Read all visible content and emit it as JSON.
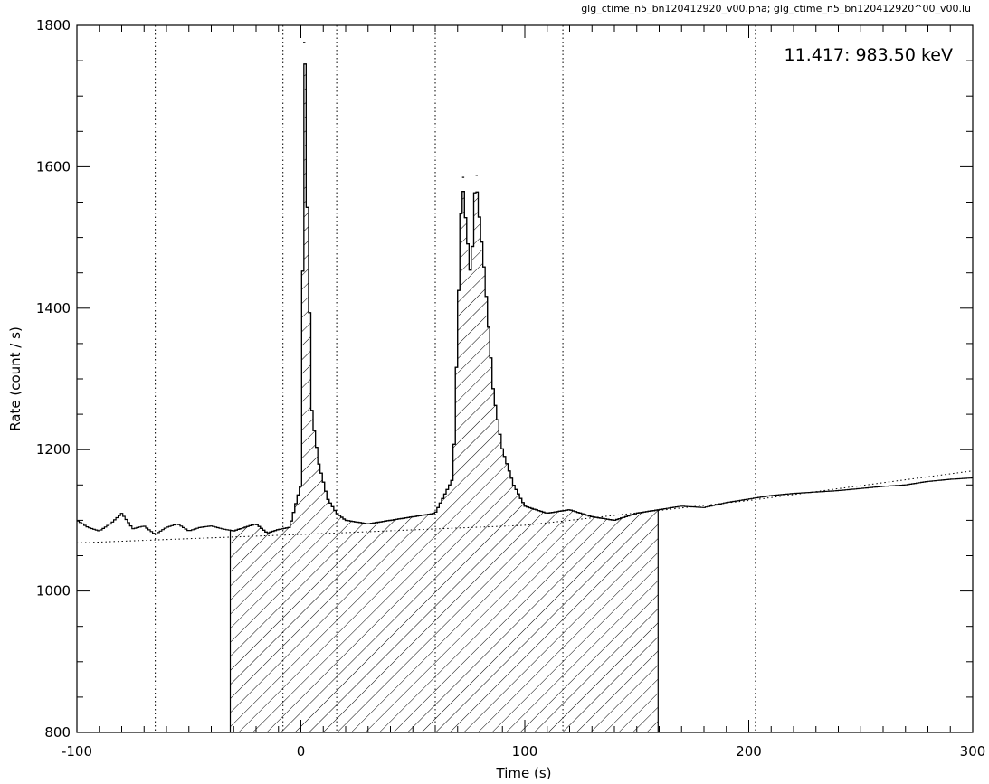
{
  "chart_data": {
    "type": "histogram",
    "title": "glg_ctime_n5_bn120412920_v00.pha; glg_ctime_n5_bn120412920^00_v00.lu",
    "annotation": "11.417: 983.50 keV",
    "xlabel": "Time (s)",
    "ylabel": "Rate (count / s)",
    "xlim": [
      -100,
      300
    ],
    "ylim": [
      800,
      1800
    ],
    "x_ticks": [
      "-100",
      "0",
      "100",
      "200",
      "300"
    ],
    "y_ticks": [
      "800",
      "1000",
      "1200",
      "1400",
      "1600",
      "1800"
    ],
    "grid": false,
    "bin_width_s": 1.024,
    "vertical_dotted_lines_x": [
      -65,
      -8,
      16,
      60,
      117,
      203
    ],
    "background_fit": [
      [
        -100,
        1068
      ],
      [
        0,
        1080
      ],
      [
        100,
        1093
      ],
      [
        200,
        1128
      ],
      [
        300,
        1170
      ]
    ],
    "shaded_interval": [
      -31.5,
      159.5
    ],
    "peaks": [
      {
        "x": 1.5,
        "y": 1776
      },
      {
        "x": 72.5,
        "y": 1585
      },
      {
        "x": 78.5,
        "y": 1588
      }
    ],
    "series": [
      {
        "values": [
          [
            -100,
            1100
          ],
          [
            -95,
            1090
          ],
          [
            -90,
            1085
          ],
          [
            -85,
            1095
          ],
          [
            -80,
            1110
          ],
          [
            -75,
            1088
          ],
          [
            -70,
            1092
          ],
          [
            -65,
            1080
          ],
          [
            -60,
            1090
          ],
          [
            -55,
            1095
          ],
          [
            -50,
            1085
          ],
          [
            -45,
            1090
          ],
          [
            -40,
            1092
          ],
          [
            -35,
            1088
          ],
          [
            -30,
            1085
          ],
          [
            -25,
            1090
          ],
          [
            -20,
            1095
          ],
          [
            -15,
            1082
          ],
          [
            -10,
            1087
          ],
          [
            -5,
            1090
          ],
          [
            0,
            1150
          ],
          [
            1,
            1500
          ],
          [
            2,
            1776
          ],
          [
            3,
            1520
          ],
          [
            5,
            1250
          ],
          [
            8,
            1180
          ],
          [
            12,
            1130
          ],
          [
            16,
            1110
          ],
          [
            20,
            1100
          ],
          [
            30,
            1095
          ],
          [
            40,
            1100
          ],
          [
            50,
            1105
          ],
          [
            60,
            1110
          ],
          [
            68,
            1160
          ],
          [
            72,
            1585
          ],
          [
            76,
            1440
          ],
          [
            78,
            1588
          ],
          [
            82,
            1450
          ],
          [
            86,
            1280
          ],
          [
            90,
            1200
          ],
          [
            95,
            1150
          ],
          [
            100,
            1120
          ],
          [
            110,
            1110
          ],
          [
            120,
            1115
          ],
          [
            130,
            1105
          ],
          [
            140,
            1100
          ],
          [
            150,
            1110
          ],
          [
            160,
            1115
          ],
          [
            170,
            1120
          ],
          [
            180,
            1118
          ],
          [
            190,
            1125
          ],
          [
            200,
            1130
          ],
          [
            210,
            1135
          ],
          [
            220,
            1138
          ],
          [
            230,
            1140
          ],
          [
            240,
            1142
          ],
          [
            250,
            1145
          ],
          [
            260,
            1148
          ],
          [
            270,
            1150
          ],
          [
            280,
            1155
          ],
          [
            290,
            1158
          ],
          [
            300,
            1160
          ]
        ]
      }
    ]
  }
}
